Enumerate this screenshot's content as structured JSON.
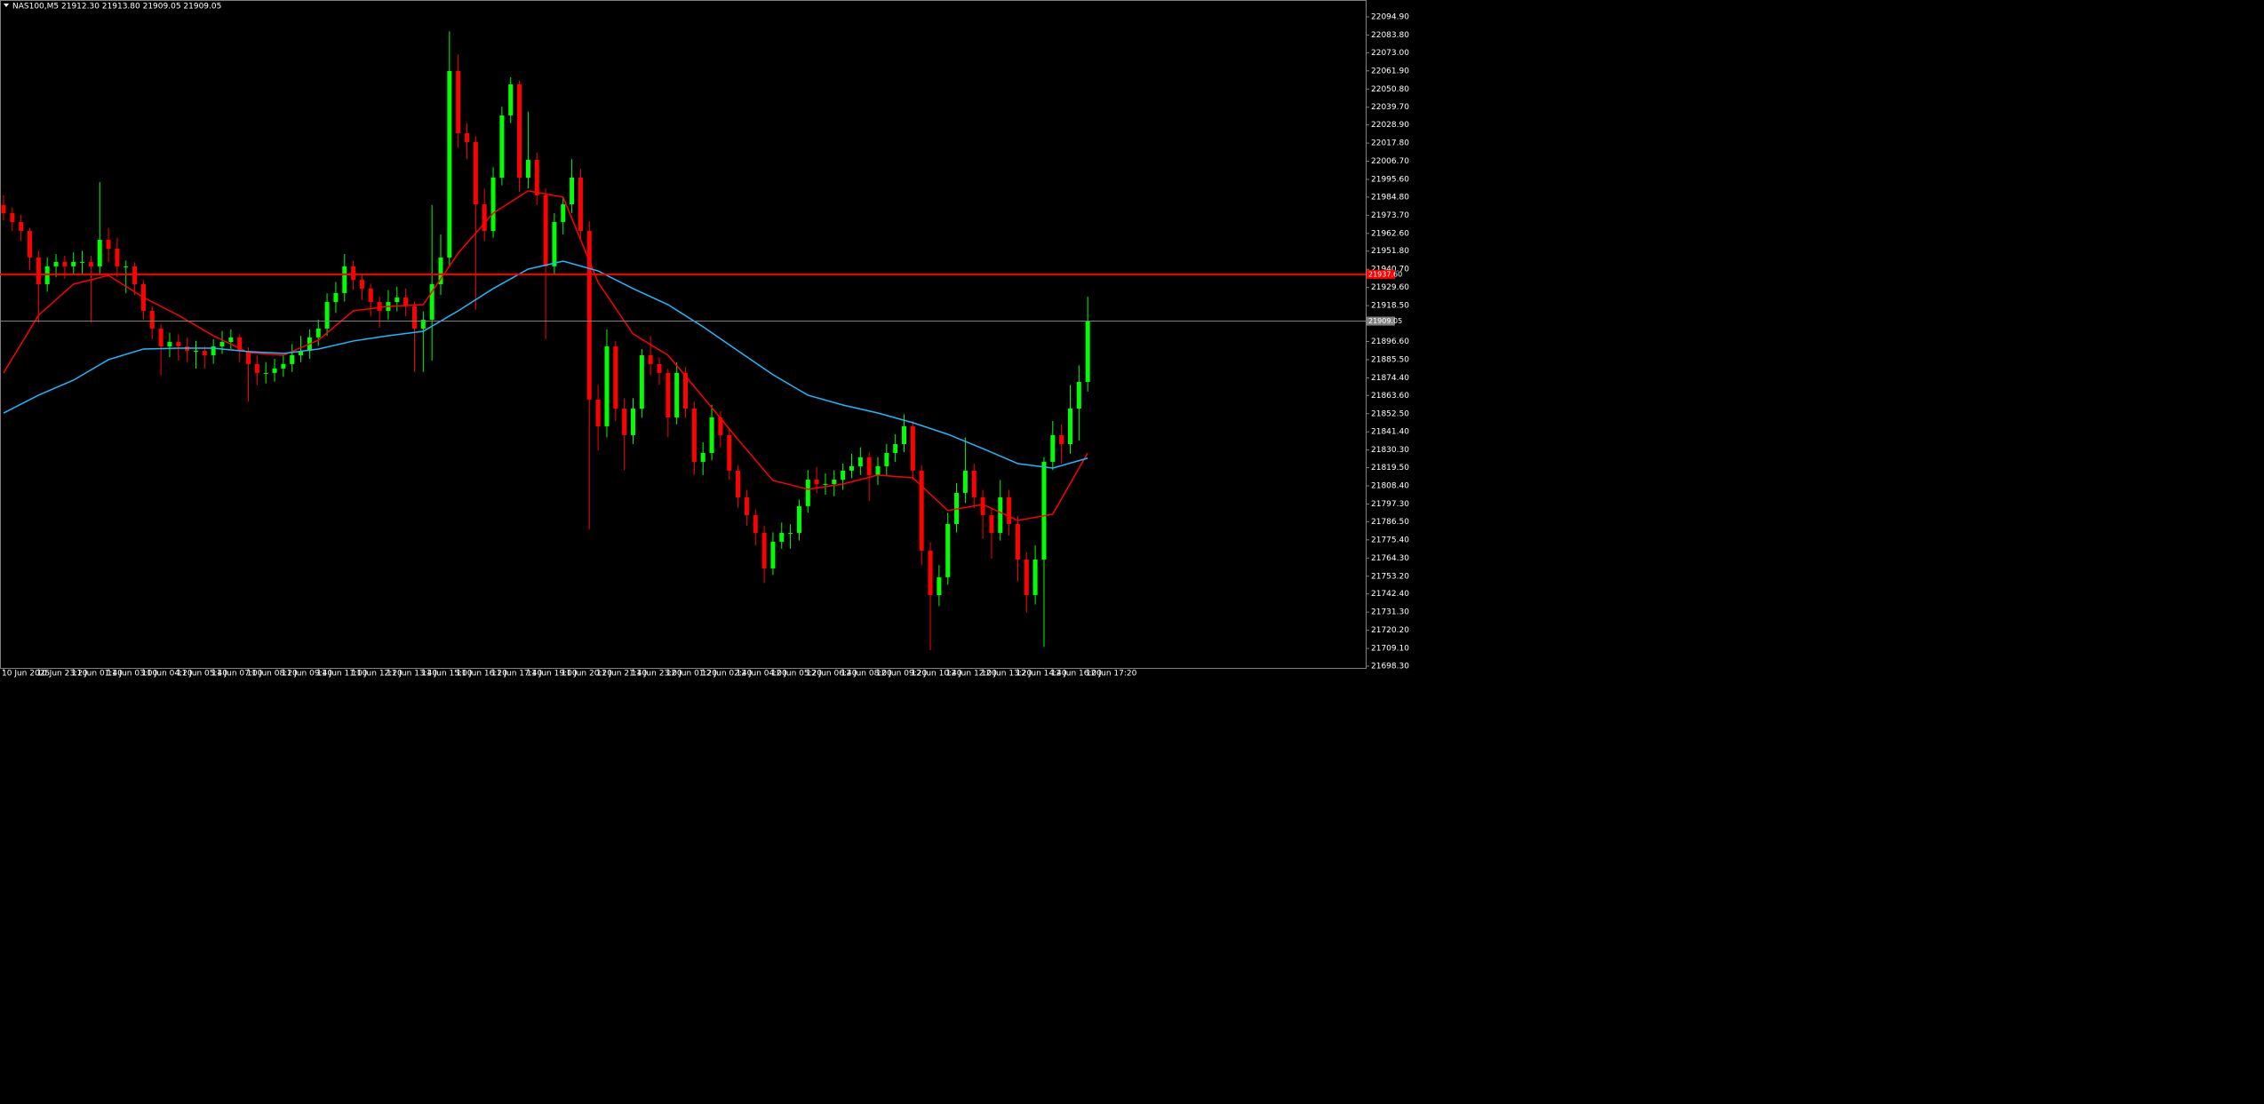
{
  "chart_data": {
    "type": "candlestick",
    "title": "NAS100,M5  21912.30 21913.80 21909.05 21909.05",
    "x_labels": [
      "10 Jun 2025",
      "10 Jun 23:20",
      "11 Jun 01:40",
      "11 Jun 03:00",
      "11 Jun 04:20",
      "11 Jun 05:40",
      "11 Jun 07:00",
      "11 Jun 08:20",
      "11 Jun 09:40",
      "11 Jun 11:00",
      "11 Jun 12:20",
      "11 Jun 13:40",
      "11 Jun 15:00",
      "11 Jun 16:20",
      "11 Jun 17:40",
      "11 Jun 19:00",
      "11 Jun 20:20",
      "11 Jun 21:40",
      "11 Jun 23:00",
      "12 Jun 01:20",
      "12 Jun 02:40",
      "12 Jun 04:00",
      "12 Jun 05:20",
      "12 Jun 06:40",
      "12 Jun 08:00",
      "12 Jun 09:20",
      "12 Jun 10:40",
      "12 Jun 12:00",
      "12 Jun 13:20",
      "12 Jun 14:40",
      "12 Jun 16:00",
      "12 Jun 17:20"
    ],
    "ohlc": [
      [
        21980.0,
        21986.0,
        21970.5,
        21975.0
      ],
      [
        21975.0,
        21978.5,
        21964.0,
        21969.6
      ],
      [
        21969.6,
        21974.0,
        21958.0,
        21964.1
      ],
      [
        21964.1,
        21966.0,
        21940.0,
        21947.9
      ],
      [
        21947.9,
        21952.0,
        21908.0,
        21931.6
      ],
      [
        21931.6,
        21948.0,
        21927.0,
        21942.5
      ],
      [
        21942.5,
        21950.0,
        21936.0,
        21945.2
      ],
      [
        21945.2,
        21949.0,
        21935.0,
        21942.5
      ],
      [
        21942.5,
        21951.0,
        21938.0,
        21945.2
      ],
      [
        21945.2,
        21952.0,
        21937.0,
        21945.2
      ],
      [
        21945.2,
        21949.0,
        21908.0,
        21942.5
      ],
      [
        21942.5,
        21994.0,
        21938.0,
        21958.7
      ],
      [
        21958.7,
        21966.0,
        21945.0,
        21953.3
      ],
      [
        21953.3,
        21960.0,
        21936.0,
        21942.5
      ],
      [
        21942.5,
        21946.0,
        21926.0,
        21942.5
      ],
      [
        21942.5,
        21945.0,
        21925.0,
        21931.6
      ],
      [
        21931.6,
        21934.0,
        21910.0,
        21915.3
      ],
      [
        21915.3,
        21918.0,
        21898.0,
        21904.5
      ],
      [
        21904.5,
        21907.0,
        21876.0,
        21893.6
      ],
      [
        21893.6,
        21902.0,
        21887.0,
        21896.3
      ],
      [
        21896.3,
        21901.0,
        21885.0,
        21893.6
      ],
      [
        21893.6,
        21899.0,
        21884.0,
        21890.9
      ],
      [
        21890.9,
        21897.0,
        21880.0,
        21890.9
      ],
      [
        21890.9,
        21894.0,
        21880.0,
        21888.2
      ],
      [
        21888.2,
        21898.0,
        21883.0,
        21893.6
      ],
      [
        21893.6,
        21903.0,
        21889.0,
        21896.3
      ],
      [
        21896.3,
        21904.0,
        21892.0,
        21899.1
      ],
      [
        21899.1,
        21901.0,
        21884.0,
        21890.9
      ],
      [
        21890.9,
        21893.0,
        21860.0,
        21882.8
      ],
      [
        21882.8,
        21888.0,
        21870.0,
        21877.4
      ],
      [
        21877.4,
        21884.0,
        21871.0,
        21877.4
      ],
      [
        21877.4,
        21886.0,
        21872.0,
        21880.1
      ],
      [
        21880.1,
        21888.0,
        21875.0,
        21882.8
      ],
      [
        21882.8,
        21895.0,
        21878.0,
        21888.2
      ],
      [
        21888.2,
        21900.0,
        21884.0,
        21890.9
      ],
      [
        21890.9,
        21904.0,
        21886.0,
        21899.1
      ],
      [
        21899.1,
        21910.0,
        21894.0,
        21904.5
      ],
      [
        21904.5,
        21926.0,
        21900.0,
        21920.7
      ],
      [
        21920.7,
        21933.0,
        21914.0,
        21926.2
      ],
      [
        21926.2,
        21950.0,
        21921.0,
        21942.5
      ],
      [
        21942.5,
        21946.0,
        21928.0,
        21934.3
      ],
      [
        21934.3,
        21938.0,
        21922.0,
        21928.9
      ],
      [
        21928.9,
        21932.0,
        21912.0,
        21920.7
      ],
      [
        21920.7,
        21924.0,
        21905.0,
        21915.3
      ],
      [
        21915.3,
        21928.0,
        21910.0,
        21920.7
      ],
      [
        21920.7,
        21930.0,
        21915.0,
        21923.5
      ],
      [
        21923.5,
        21929.0,
        21912.0,
        21918.0
      ],
      [
        21918.0,
        21921.0,
        21878.0,
        21904.5
      ],
      [
        21904.5,
        21915.0,
        21878.0,
        21909.9
      ],
      [
        21909.9,
        21980.0,
        21885.0,
        21931.6
      ],
      [
        21931.6,
        21962.0,
        21925.0,
        21947.9
      ],
      [
        21947.9,
        22086.0,
        21942.0,
        22061.8
      ],
      [
        22061.8,
        22072.0,
        22015.0,
        22023.8
      ],
      [
        22023.8,
        22030.0,
        22008.0,
        22018.4
      ],
      [
        22018.4,
        22022.0,
        21916.0,
        21980.4
      ],
      [
        21980.4,
        21990.0,
        21958.0,
        21964.1
      ],
      [
        21964.1,
        22003.0,
        21960.0,
        21996.7
      ],
      [
        21996.7,
        22040.0,
        21992.0,
        22034.7
      ],
      [
        22034.7,
        22058.0,
        22030.0,
        22053.7
      ],
      [
        22053.7,
        22056.0,
        21988.0,
        21996.7
      ],
      [
        21996.7,
        22037.0,
        21990.0,
        22007.6
      ],
      [
        22007.6,
        22012.0,
        21980.0,
        21985.9
      ],
      [
        21985.9,
        21990.0,
        21898.0,
        21942.5
      ],
      [
        21942.5,
        21975.0,
        21938.0,
        21969.6
      ],
      [
        21969.6,
        21985.0,
        21962.0,
        21980.4
      ],
      [
        21980.4,
        22008.0,
        21975.0,
        21996.7
      ],
      [
        21996.7,
        22002.0,
        21958.0,
        21964.1
      ],
      [
        21964.1,
        21970.0,
        21782.0,
        21861.1
      ],
      [
        21861.1,
        21870.0,
        21830.0,
        21844.8
      ],
      [
        21844.8,
        21904.0,
        21838.0,
        21893.6
      ],
      [
        21893.6,
        21897.0,
        21848.0,
        21855.6
      ],
      [
        21855.6,
        21862.0,
        21818.0,
        21839.4
      ],
      [
        21839.4,
        21862.0,
        21834.0,
        21855.6
      ],
      [
        21855.6,
        21892.0,
        21850.0,
        21888.2
      ],
      [
        21888.2,
        21900.0,
        21876.0,
        21882.8
      ],
      [
        21882.8,
        21887.0,
        21870.0,
        21877.4
      ],
      [
        21877.4,
        21880.0,
        21838.0,
        21850.2
      ],
      [
        21850.2,
        21884.0,
        21846.0,
        21877.4
      ],
      [
        21877.4,
        21881.0,
        21850.0,
        21855.6
      ],
      [
        21855.6,
        21860.0,
        21815.0,
        21823.1
      ],
      [
        21823.1,
        21835.0,
        21815.0,
        21828.5
      ],
      [
        21828.5,
        21858.0,
        21824.0,
        21850.2
      ],
      [
        21850.2,
        21854.0,
        21832.0,
        21839.4
      ],
      [
        21839.4,
        21843.0,
        21812.0,
        21817.7
      ],
      [
        21817.7,
        21821.0,
        21795.0,
        21801.4
      ],
      [
        21801.4,
        21806.0,
        21784.0,
        21790.5
      ],
      [
        21790.5,
        21794.0,
        21772.0,
        21779.7
      ],
      [
        21779.7,
        21784.0,
        21749.0,
        21758.0
      ],
      [
        21758.0,
        21780.0,
        21754.0,
        21774.3
      ],
      [
        21774.3,
        21786.0,
        21770.0,
        21779.7
      ],
      [
        21779.7,
        21785.0,
        21770.0,
        21779.7
      ],
      [
        21779.7,
        21800.0,
        21775.0,
        21796.0
      ],
      [
        21796.0,
        21818.0,
        21792.0,
        21812.2
      ],
      [
        21812.2,
        21820.0,
        21804.0,
        21809.5
      ],
      [
        21809.5,
        21816.0,
        21803.0,
        21809.5
      ],
      [
        21809.5,
        21818.0,
        21802.0,
        21812.2
      ],
      [
        21812.2,
        21822.0,
        21806.0,
        21817.7
      ],
      [
        21817.7,
        21828.0,
        21813.0,
        21820.4
      ],
      [
        21820.4,
        21832.0,
        21815.0,
        21825.8
      ],
      [
        21825.8,
        21829.0,
        21799.0,
        21815.0
      ],
      [
        21815.0,
        21826.0,
        21809.0,
        21820.4
      ],
      [
        21820.4,
        21834.0,
        21815.0,
        21828.5
      ],
      [
        21828.5,
        21840.0,
        21823.0,
        21833.9
      ],
      [
        21833.9,
        21852.0,
        21829.0,
        21844.8
      ],
      [
        21844.8,
        21848.0,
        21812.0,
        21817.7
      ],
      [
        21817.7,
        21821.0,
        21760.0,
        21768.9
      ],
      [
        21768.9,
        21774.0,
        21708.0,
        21741.7
      ],
      [
        21741.7,
        21760.0,
        21735.0,
        21752.6
      ],
      [
        21752.6,
        21792.0,
        21748.0,
        21785.1
      ],
      [
        21785.1,
        21810.0,
        21780.0,
        21804.1
      ],
      [
        21804.1,
        21838.0,
        21798.0,
        21817.7
      ],
      [
        21817.7,
        21822.0,
        21795.0,
        21801.4
      ],
      [
        21801.4,
        21806.0,
        21776.0,
        21790.5
      ],
      [
        21790.5,
        21795.0,
        21764.0,
        21779.7
      ],
      [
        21779.7,
        21812.0,
        21775.0,
        21801.4
      ],
      [
        21801.4,
        21806.0,
        21778.0,
        21785.1
      ],
      [
        21785.1,
        21790.0,
        21750.0,
        21763.4
      ],
      [
        21763.4,
        21768.0,
        21731.0,
        21741.7
      ],
      [
        21741.7,
        21772.0,
        21736.0,
        21763.4
      ],
      [
        21763.4,
        21826.0,
        21710.0,
        21823.1
      ],
      [
        21823.1,
        21848.0,
        21818.0,
        21839.4
      ],
      [
        21839.4,
        21846.0,
        21822.0,
        21833.9
      ],
      [
        21833.9,
        21870.0,
        21828.0,
        21855.6
      ],
      [
        21855.6,
        21882.0,
        21836.0,
        21871.9
      ],
      [
        21871.9,
        21924.0,
        21866.0,
        21909.1
      ]
    ],
    "bull_color": "#00ff00",
    "bear_color": "#ff0000",
    "moving_averages": [
      {
        "color": "#ff0000",
        "values": [
          21877.4,
          21912.6,
          21931.6,
          21937.0,
          21923.5,
          21912.6,
          21900.1,
          21889.8,
          21888.2,
          21897.4,
          21915.3,
          21918.0,
          21919.1,
          21950.6,
          21975.0,
          21988.6,
          21984.8,
          21932.7,
          21901.2,
          21888.2,
          21862.7,
          21836.7,
          21811.7,
          21806.3,
          21809.5,
          21815.0,
          21813.3,
          21793.3,
          21797.1,
          21787.3,
          21791.1,
          21828.5
        ]
      },
      {
        "color": "#1fb8ff",
        "values": [
          21852.9,
          21863.8,
          21873.0,
          21885.5,
          21892.0,
          21892.5,
          21892.5,
          21890.4,
          21889.3,
          21892.0,
          21896.9,
          21900.1,
          21902.8,
          21915.3,
          21928.9,
          21940.8,
          21945.7,
          21939.7,
          21928.9,
          21919.1,
          21905.6,
          21890.9,
          21876.3,
          21863.8,
          21857.8,
          21852.9,
          21847.0,
          21839.9,
          21831.2,
          21822.0,
          21819.3,
          21825.3
        ]
      }
    ],
    "levels": [
      {
        "value": 21937.6,
        "label": "21937.60",
        "color": "#ff0000"
      },
      {
        "value": 21909.05,
        "label": "21909.05",
        "color": "#808080"
      }
    ],
    "ylim": [
      21697.2,
      22105.2
    ],
    "yticks": [
      {
        "value": 22094.9,
        "label": "22094.90"
      },
      {
        "value": 22083.8,
        "label": "22083.80"
      },
      {
        "value": 22073.0,
        "label": "22073.00"
      },
      {
        "value": 22061.9,
        "label": "22061.90"
      },
      {
        "value": 22050.8,
        "label": "22050.80"
      },
      {
        "value": 22039.7,
        "label": "22039.70"
      },
      {
        "value": 22028.9,
        "label": "22028.90"
      },
      {
        "value": 22017.8,
        "label": "22017.80"
      },
      {
        "value": 22006.7,
        "label": "22006.70"
      },
      {
        "value": 21995.6,
        "label": "21995.60"
      },
      {
        "value": 21984.8,
        "label": "21984.80"
      },
      {
        "value": 21973.7,
        "label": "21973.70"
      },
      {
        "value": 21962.6,
        "label": "21962.60"
      },
      {
        "value": 21951.8,
        "label": "21951.80"
      },
      {
        "value": 21940.7,
        "label": "21940.70"
      },
      {
        "value": 21929.6,
        "label": "21929.60"
      },
      {
        "value": 21918.5,
        "label": "21918.50"
      },
      {
        "value": 21896.6,
        "label": "21896.60"
      },
      {
        "value": 21885.5,
        "label": "21885.50"
      },
      {
        "value": 21874.4,
        "label": "21874.40"
      },
      {
        "value": 21863.6,
        "label": "21863.60"
      },
      {
        "value": 21852.5,
        "label": "21852.50"
      },
      {
        "value": 21841.4,
        "label": "21841.40"
      },
      {
        "value": 21830.3,
        "label": "21830.30"
      },
      {
        "value": 21819.5,
        "label": "21819.50"
      },
      {
        "value": 21808.4,
        "label": "21808.40"
      },
      {
        "value": 21797.3,
        "label": "21797.30"
      },
      {
        "value": 21786.5,
        "label": "21786.50"
      },
      {
        "value": 21775.4,
        "label": "21775.40"
      },
      {
        "value": 21764.3,
        "label": "21764.30"
      },
      {
        "value": 21753.2,
        "label": "21753.20"
      },
      {
        "value": 21742.4,
        "label": "21742.40"
      },
      {
        "value": 21731.3,
        "label": "21731.30"
      },
      {
        "value": 21720.2,
        "label": "21720.20"
      },
      {
        "value": 21709.1,
        "label": "21709.10"
      },
      {
        "value": 21698.3,
        "label": "21698.30"
      }
    ]
  }
}
